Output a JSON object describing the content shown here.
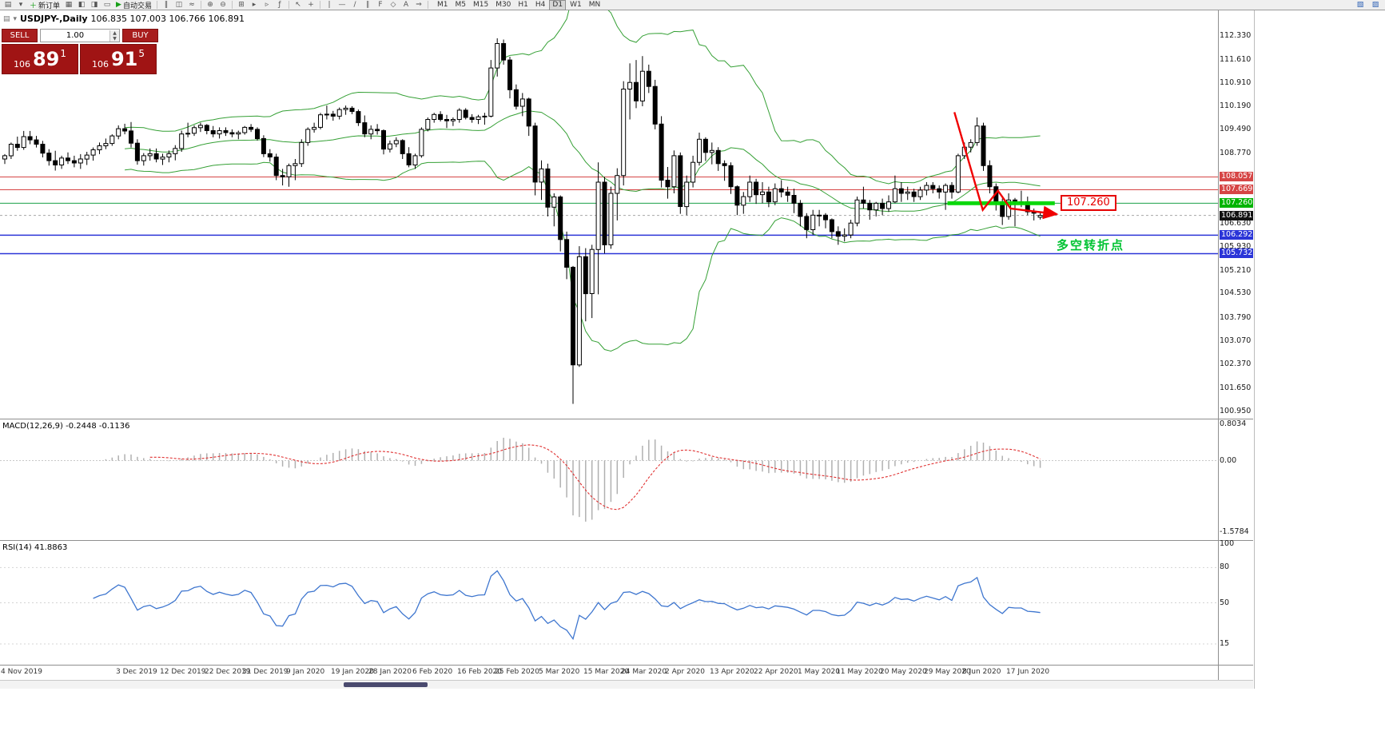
{
  "toolbar": {
    "new_order": "新订单",
    "autotrading": "自动交易",
    "icons": [
      {
        "n": "new-chart-icon",
        "g": "▤"
      },
      {
        "n": "chart-profiles-icon",
        "g": "▾"
      },
      {
        "n": "new-order-button",
        "g": "＋",
        "gc": "#18a018",
        "label_key": "new_order"
      },
      {
        "n": "market-watch-icon",
        "g": "▦"
      },
      {
        "n": "data-window-icon",
        "g": "◧"
      },
      {
        "n": "navigator-icon",
        "g": "◨"
      },
      {
        "n": "terminal-icon",
        "g": "▭"
      },
      {
        "n": "autotrading-button",
        "g": "▶",
        "gc": "#18a018",
        "label_key": "autotrading"
      },
      {
        "sep": true
      },
      {
        "n": "bar-chart-icon",
        "g": "‖"
      },
      {
        "n": "candlestick-chart-icon",
        "g": "◫"
      },
      {
        "n": "line-chart-icon",
        "g": "≈"
      },
      {
        "sep": true
      },
      {
        "n": "zoom-in-icon",
        "g": "⊕"
      },
      {
        "n": "zoom-out-icon",
        "g": "⊖"
      },
      {
        "sep": true
      },
      {
        "n": "tile-windows-icon",
        "g": "⊞"
      },
      {
        "n": "auto-scroll-icon",
        "g": "▸"
      },
      {
        "n": "chart-shift-icon",
        "g": "▹"
      },
      {
        "n": "indicators-icon",
        "g": "ƒ"
      },
      {
        "sep": true
      },
      {
        "n": "cursor-icon",
        "g": "↖"
      },
      {
        "n": "crosshair-icon",
        "g": "+"
      },
      {
        "sep": true
      },
      {
        "n": "vertical-line-icon",
        "g": "|"
      },
      {
        "n": "horizontal-line-icon",
        "g": "—"
      },
      {
        "n": "trendline-icon",
        "g": "/"
      },
      {
        "n": "channel-icon",
        "g": "∥"
      },
      {
        "n": "fibonacci-icon",
        "g": "F"
      },
      {
        "n": "shapes-icon",
        "g": "◇"
      },
      {
        "n": "text-icon",
        "g": "A"
      },
      {
        "n": "arrows-icon",
        "g": "⇒"
      },
      {
        "sep": true
      }
    ],
    "timeframes": [
      "M1",
      "M5",
      "M15",
      "M30",
      "H1",
      "H4",
      "D1",
      "W1",
      "MN"
    ],
    "active_timeframe": "D1",
    "right_icons": [
      {
        "n": "fullscreen-icon",
        "g": "▧"
      },
      {
        "n": "window-layout-icon",
        "g": "▨"
      }
    ]
  },
  "chart": {
    "title": "USDJPY-,Daily",
    "ohlc": "106.835 107.003 106.766 106.891"
  },
  "trade_panel": {
    "sell_label": "SELL",
    "buy_label": "BUY",
    "volume": "1.00",
    "bid_small": "106",
    "bid_big": "89",
    "bid_sup": "1",
    "ask_small": "106",
    "ask_big": "91",
    "ask_sup": "5"
  },
  "price_axis": [
    {
      "text": "112.330"
    },
    {
      "text": "111.610"
    },
    {
      "text": "110.910"
    },
    {
      "text": "110.190"
    },
    {
      "text": "109.490"
    },
    {
      "text": "108.770"
    },
    {
      "text": "108.057",
      "bg": "#d64545",
      "fg": "#ffffff"
    },
    {
      "text": "107.669",
      "bg": "#d64545",
      "fg": "#ffffff"
    },
    {
      "text": "107.260",
      "bg": "#00b400",
      "fg": "#ffffff"
    },
    {
      "text": "106.891",
      "bg": "#111111",
      "fg": "#ffffff"
    },
    {
      "text": "106.630"
    },
    {
      "text": "106.292",
      "bg": "#2b35d8",
      "fg": "#ffffff"
    },
    {
      "text": "105.930"
    },
    {
      "text": "105.732",
      "bg": "#2b35d8",
      "fg": "#ffffff"
    },
    {
      "text": "105.210"
    },
    {
      "text": "104.530"
    },
    {
      "text": "103.790"
    },
    {
      "text": "103.070"
    },
    {
      "text": "102.370"
    },
    {
      "text": "101.650"
    },
    {
      "text": "100.950"
    }
  ],
  "macd": {
    "header": "MACD(12,26,9) -0.2448 -0.1136",
    "axis": {
      "max": "0.8034",
      "zero": "0.00",
      "min": "-1.5784"
    },
    "params": {
      "fast": 12,
      "slow": 26,
      "signal": 9
    }
  },
  "rsi": {
    "header": "RSI(14) 41.8863",
    "period": 14,
    "levels": [
      "100",
      "80",
      "50",
      "15"
    ]
  },
  "x_axis": [
    "4 Nov 2019",
    "3 Dec 2019",
    "12 Dec 2019",
    "22 Dec 2019",
    "31 Dec 2019",
    "9 Jan 2020",
    "19 Jan 2020",
    "28 Jan 2020",
    "6 Feb 2020",
    "16 Feb 2020",
    "25 Feb 2020",
    "5 Mar 2020",
    "15 Mar 2020",
    "24 Mar 2020",
    "2 Apr 2020",
    "13 Apr 2020",
    "22 Apr 2020",
    "1 May 2020",
    "11 May 2020",
    "20 May 2020",
    "29 May 2020",
    "8 Jun 2020",
    "17 Jun 2020"
  ],
  "annotations": {
    "price_label": "107.260",
    "note": "多空转折点",
    "arrow": {
      "color": "#f00000",
      "points": [
        [
          150.4,
          110.02
        ],
        [
          154.9,
          107.06
        ],
        [
          157.3,
          107.64
        ],
        [
          159.3,
          107.1
        ],
        [
          166.6,
          106.93
        ]
      ]
    }
  },
  "chart_data": {
    "type": "candlestick",
    "symbol": "USDJPY",
    "period": "Daily",
    "start_date": "2019-11-04",
    "overlays": {
      "bollinger": {
        "period": 20,
        "deviation": 2,
        "color": "#35a035"
      }
    },
    "horizontal_lines": [
      {
        "price": 108.057,
        "color": "#d64545",
        "width": 1
      },
      {
        "price": 107.669,
        "color": "#d64545",
        "width": 1
      },
      {
        "price": 107.26,
        "color": "#1ca049",
        "width": 1
      },
      {
        "price": 106.891,
        "color": "#a6a6a6",
        "width": 1,
        "dash": true
      },
      {
        "price": 106.292,
        "color": "#2b35d8",
        "width": 1.5
      },
      {
        "price": 105.732,
        "color": "#2b35d8",
        "width": 1.5
      }
    ],
    "trend_segment": {
      "price": 107.26,
      "from": 149.3,
      "to": 166.3,
      "color": "#00d800",
      "width": 5
    },
    "candles": [
      [
        108.6,
        108.75,
        108.45,
        108.7
      ],
      [
        108.7,
        109.1,
        108.6,
        109.05
      ],
      [
        109.05,
        109.28,
        108.85,
        108.95
      ],
      [
        108.95,
        109.45,
        108.88,
        109.28
      ],
      [
        109.28,
        109.45,
        109.05,
        109.18
      ],
      [
        109.18,
        109.3,
        108.95,
        109.05
      ],
      [
        109.05,
        109.15,
        108.65,
        108.78
      ],
      [
        108.78,
        108.9,
        108.4,
        108.55
      ],
      [
        108.55,
        108.85,
        108.25,
        108.42
      ],
      [
        108.42,
        108.7,
        108.3,
        108.63
      ],
      [
        108.63,
        108.8,
        108.45,
        108.55
      ],
      [
        108.55,
        108.7,
        108.35,
        108.48
      ],
      [
        108.48,
        108.75,
        108.3,
        108.6
      ],
      [
        108.6,
        108.82,
        108.42,
        108.72
      ],
      [
        108.72,
        108.95,
        108.55,
        108.88
      ],
      [
        108.88,
        109.1,
        108.75,
        109.0
      ],
      [
        109.0,
        109.22,
        108.9,
        109.07
      ],
      [
        109.07,
        109.35,
        109.0,
        109.3
      ],
      [
        109.3,
        109.62,
        109.2,
        109.52
      ],
      [
        109.52,
        109.67,
        109.35,
        109.45
      ],
      [
        109.45,
        109.72,
        108.95,
        109.08
      ],
      [
        109.08,
        109.2,
        108.43,
        108.55
      ],
      [
        108.55,
        108.78,
        108.4,
        108.7
      ],
      [
        108.7,
        108.92,
        108.55,
        108.76
      ],
      [
        108.76,
        108.92,
        108.5,
        108.6
      ],
      [
        108.6,
        108.76,
        108.42,
        108.66
      ],
      [
        108.66,
        108.86,
        108.5,
        108.76
      ],
      [
        108.76,
        109.02,
        108.56,
        108.92
      ],
      [
        108.92,
        109.46,
        108.82,
        109.36
      ],
      [
        109.36,
        109.7,
        109.26,
        109.38
      ],
      [
        109.38,
        109.62,
        109.3,
        109.55
      ],
      [
        109.55,
        109.7,
        109.42,
        109.62
      ],
      [
        109.62,
        109.66,
        109.35,
        109.46
      ],
      [
        109.46,
        109.6,
        109.26,
        109.36
      ],
      [
        109.36,
        109.56,
        109.22,
        109.46
      ],
      [
        109.46,
        109.56,
        109.3,
        109.4
      ],
      [
        109.4,
        109.5,
        109.26,
        109.36
      ],
      [
        109.36,
        109.46,
        109.2,
        109.4
      ],
      [
        109.4,
        109.6,
        109.34,
        109.56
      ],
      [
        109.56,
        109.66,
        109.42,
        109.5
      ],
      [
        109.5,
        109.56,
        109.16,
        109.22
      ],
      [
        109.22,
        109.32,
        108.66,
        108.76
      ],
      [
        108.76,
        108.9,
        108.52,
        108.66
      ],
      [
        108.66,
        108.76,
        107.96,
        108.1
      ],
      [
        108.1,
        108.3,
        107.8,
        108.06
      ],
      [
        108.06,
        108.46,
        107.76,
        108.4
      ],
      [
        108.4,
        108.6,
        107.96,
        108.46
      ],
      [
        108.46,
        109.2,
        108.36,
        109.1
      ],
      [
        109.1,
        109.56,
        109.0,
        109.5
      ],
      [
        109.5,
        109.7,
        109.4,
        109.56
      ],
      [
        109.56,
        110.0,
        109.5,
        109.94
      ],
      [
        109.94,
        110.22,
        109.8,
        109.96
      ],
      [
        109.96,
        110.06,
        109.76,
        109.9
      ],
      [
        109.9,
        110.16,
        109.8,
        110.1
      ],
      [
        110.1,
        110.22,
        109.94,
        110.14
      ],
      [
        110.14,
        110.2,
        109.96,
        110.04
      ],
      [
        110.04,
        110.1,
        109.6,
        109.7
      ],
      [
        109.7,
        109.92,
        109.26,
        109.36
      ],
      [
        109.36,
        109.62,
        109.2,
        109.5
      ],
      [
        109.5,
        109.66,
        109.34,
        109.46
      ],
      [
        109.46,
        109.5,
        108.74,
        108.9
      ],
      [
        108.9,
        109.16,
        108.8,
        109.06
      ],
      [
        109.06,
        109.26,
        108.96,
        109.16
      ],
      [
        109.16,
        109.2,
        108.6,
        108.76
      ],
      [
        108.76,
        108.96,
        108.35,
        108.42
      ],
      [
        108.42,
        108.76,
        108.3,
        108.7
      ],
      [
        108.7,
        109.56,
        108.64,
        109.5
      ],
      [
        109.5,
        109.86,
        109.44,
        109.8
      ],
      [
        109.8,
        110.0,
        109.7,
        109.95
      ],
      [
        109.95,
        110.05,
        109.74,
        109.8
      ],
      [
        109.8,
        109.94,
        109.54,
        109.76
      ],
      [
        109.76,
        109.86,
        109.6,
        109.8
      ],
      [
        109.8,
        110.14,
        109.7,
        110.08
      ],
      [
        110.08,
        110.14,
        109.8,
        109.86
      ],
      [
        109.86,
        109.96,
        109.7,
        109.8
      ],
      [
        109.8,
        109.94,
        109.66,
        109.88
      ],
      [
        109.88,
        110.0,
        109.64,
        109.9
      ],
      [
        109.9,
        111.6,
        109.86,
        111.36
      ],
      [
        111.36,
        112.26,
        111.1,
        112.1
      ],
      [
        112.1,
        112.22,
        111.46,
        111.6
      ],
      [
        111.6,
        111.7,
        110.44,
        110.7
      ],
      [
        110.7,
        110.86,
        110.1,
        110.2
      ],
      [
        110.2,
        110.6,
        109.9,
        110.42
      ],
      [
        110.42,
        110.46,
        109.3,
        109.6
      ],
      [
        109.6,
        109.7,
        107.5,
        107.9
      ],
      [
        107.9,
        108.56,
        107.36,
        108.3
      ],
      [
        108.3,
        108.46,
        106.86,
        107.14
      ],
      [
        107.14,
        107.56,
        106.56,
        107.45
      ],
      [
        107.45,
        107.5,
        105.8,
        106.16
      ],
      [
        106.16,
        106.4,
        104.96,
        105.32
      ],
      [
        105.32,
        105.36,
        101.18,
        102.36
      ],
      [
        102.36,
        105.96,
        102.3,
        105.64
      ],
      [
        105.64,
        105.9,
        103.68,
        104.52
      ],
      [
        104.52,
        106.0,
        103.78,
        105.86
      ],
      [
        105.86,
        108.5,
        104.5,
        107.9
      ],
      [
        107.9,
        108.06,
        105.74,
        106.0
      ],
      [
        106.0,
        107.76,
        105.88,
        107.56
      ],
      [
        107.56,
        108.32,
        106.74,
        108.1
      ],
      [
        108.1,
        110.96,
        107.8,
        110.72
      ],
      [
        110.72,
        111.5,
        109.8,
        110.92
      ],
      [
        110.92,
        111.6,
        110.14,
        110.36
      ],
      [
        110.36,
        111.72,
        110.2,
        111.26
      ],
      [
        111.26,
        111.46,
        110.6,
        110.8
      ],
      [
        110.8,
        111.0,
        109.5,
        109.66
      ],
      [
        109.66,
        109.9,
        107.74,
        107.96
      ],
      [
        107.96,
        108.36,
        107.4,
        107.76
      ],
      [
        107.76,
        108.86,
        107.56,
        108.7
      ],
      [
        108.7,
        108.8,
        106.94,
        107.16
      ],
      [
        107.16,
        108.1,
        106.9,
        107.9
      ],
      [
        107.9,
        108.7,
        107.74,
        108.5
      ],
      [
        108.5,
        109.4,
        108.4,
        109.2
      ],
      [
        109.2,
        109.26,
        108.54,
        108.8
      ],
      [
        108.8,
        109.1,
        108.44,
        108.86
      ],
      [
        108.86,
        108.96,
        108.24,
        108.46
      ],
      [
        108.46,
        108.56,
        107.94,
        108.4
      ],
      [
        108.4,
        108.5,
        107.54,
        107.76
      ],
      [
        107.76,
        107.8,
        106.9,
        107.2
      ],
      [
        107.2,
        107.6,
        106.94,
        107.46
      ],
      [
        107.46,
        108.1,
        107.3,
        107.9
      ],
      [
        107.9,
        108.0,
        107.24,
        107.52
      ],
      [
        107.52,
        107.9,
        107.26,
        107.6
      ],
      [
        107.6,
        107.76,
        107.14,
        107.3
      ],
      [
        107.3,
        107.86,
        107.2,
        107.7
      ],
      [
        107.7,
        107.96,
        107.44,
        107.6
      ],
      [
        107.6,
        107.76,
        107.3,
        107.5
      ],
      [
        107.5,
        107.7,
        106.96,
        107.26
      ],
      [
        107.26,
        107.36,
        106.56,
        106.86
      ],
      [
        106.86,
        106.96,
        106.2,
        106.46
      ],
      [
        106.46,
        107.06,
        106.3,
        106.9
      ],
      [
        106.9,
        107.06,
        106.56,
        106.9
      ],
      [
        106.9,
        106.96,
        106.5,
        106.76
      ],
      [
        106.76,
        106.8,
        106.2,
        106.4
      ],
      [
        106.4,
        106.56,
        106.0,
        106.26
      ],
      [
        106.26,
        106.5,
        106.1,
        106.3
      ],
      [
        106.3,
        106.76,
        106.2,
        106.66
      ],
      [
        106.66,
        107.46,
        106.56,
        107.36
      ],
      [
        107.36,
        107.76,
        107.1,
        107.26
      ],
      [
        107.26,
        107.36,
        106.76,
        107.06
      ],
      [
        107.06,
        107.3,
        106.86,
        107.26
      ],
      [
        107.26,
        107.4,
        106.9,
        107.1
      ],
      [
        107.1,
        107.5,
        107.0,
        107.3
      ],
      [
        107.3,
        108.1,
        107.26,
        107.7
      ],
      [
        107.7,
        107.9,
        107.3,
        107.56
      ],
      [
        107.56,
        107.76,
        107.36,
        107.6
      ],
      [
        107.6,
        107.7,
        107.3,
        107.46
      ],
      [
        107.46,
        107.76,
        107.36,
        107.66
      ],
      [
        107.66,
        107.9,
        107.5,
        107.8
      ],
      [
        107.8,
        107.9,
        107.56,
        107.7
      ],
      [
        107.7,
        107.8,
        107.4,
        107.6
      ],
      [
        107.6,
        107.86,
        107.06,
        107.8
      ],
      [
        107.8,
        107.9,
        107.4,
        107.6
      ],
      [
        107.6,
        108.76,
        107.56,
        108.7
      ],
      [
        108.7,
        109.1,
        108.6,
        108.96
      ],
      [
        108.96,
        109.2,
        108.8,
        109.1
      ],
      [
        109.1,
        109.86,
        109.0,
        109.6
      ],
      [
        109.6,
        109.7,
        108.24,
        108.4
      ],
      [
        108.4,
        108.56,
        107.56,
        107.76
      ],
      [
        107.76,
        107.86,
        107.04,
        107.3
      ],
      [
        107.3,
        107.4,
        106.6,
        106.86
      ],
      [
        106.86,
        107.56,
        106.76,
        107.36
      ],
      [
        107.36,
        107.42,
        106.56,
        107.3
      ],
      [
        107.3,
        107.64,
        107.14,
        107.3
      ],
      [
        107.3,
        107.46,
        106.9,
        107.0
      ],
      [
        107.0,
        107.1,
        106.74,
        106.96
      ],
      [
        106.835,
        107.003,
        106.766,
        106.891
      ]
    ]
  }
}
